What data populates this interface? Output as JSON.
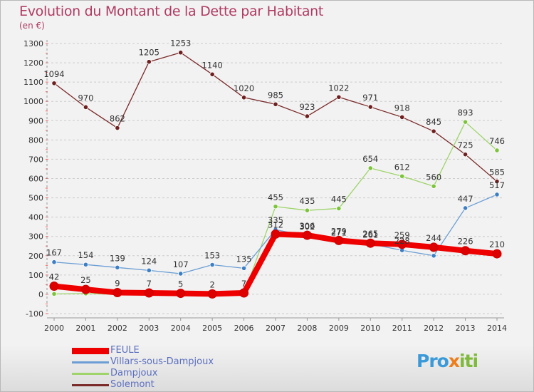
{
  "title": "Evolution du Montant de la Dette par Habitant",
  "unit": "(en €)",
  "logo": {
    "p1": "Pro",
    "x": "x",
    "p2": "iti"
  },
  "colors": {
    "title": "#b03a62",
    "grid": "#cccccc",
    "text": "#333333",
    "legend_text": "#5b6fc0"
  },
  "chart_data": {
    "type": "line",
    "title": "Evolution du Montant de la Dette par Habitant",
    "ylabel": "(en €)",
    "xlabel": "",
    "x": [
      "2000",
      "2001",
      "2002",
      "2003",
      "2004",
      "2005",
      "2006",
      "2007",
      "2008",
      "2009",
      "2010",
      "2011",
      "2012",
      "2013",
      "2014"
    ],
    "ylim": [
      -100,
      1300
    ],
    "yticks": [
      -100,
      0,
      100,
      200,
      300,
      400,
      500,
      600,
      700,
      800,
      900,
      1000,
      1100,
      1200,
      1300
    ],
    "grid": "horizontal",
    "legend_position": "bottom-left",
    "series": [
      {
        "name": "Solemont",
        "color": "#7b2a2a",
        "marker": "#6e1f1f",
        "width": 1.3,
        "values": [
          1094,
          970,
          862,
          1205,
          1253,
          1140,
          1020,
          985,
          923,
          1022,
          971,
          918,
          845,
          725,
          585
        ],
        "labels": [
          "1094",
          "970",
          "862",
          "1205",
          "1253",
          "1140",
          "1020",
          "985",
          "923",
          "1022",
          "971",
          "918",
          "845",
          "725",
          "585"
        ]
      },
      {
        "name": "Dampjoux",
        "color": "#9ed46a",
        "marker": "#7cc43a",
        "width": 1.3,
        "values": [
          2,
          4,
          0,
          4,
          3,
          2,
          0,
          455,
          435,
          445,
          654,
          612,
          560,
          893,
          746
        ],
        "labels": [
          "",
          "",
          "",
          "",
          "",
          "",
          "",
          "455",
          "435",
          "445",
          "654",
          "612",
          "560",
          "893",
          "746"
        ]
      },
      {
        "name": "Villars-sous-Dampjoux",
        "color": "#6b9ed4",
        "marker": "#3d7fc4",
        "width": 1.3,
        "values": [
          167,
          154,
          139,
          124,
          107,
          153,
          135,
          335,
          302,
          271,
          261,
          228,
          200,
          447,
          517
        ],
        "labels": [
          "167",
          "154",
          "139",
          "124",
          "107",
          "153",
          "135",
          "335",
          "302",
          "271",
          "261",
          "228",
          "",
          "447",
          "517"
        ]
      },
      {
        "name": "FEULE",
        "color": "#ee0000",
        "marker": "#dd0000",
        "width": 8,
        "values": [
          42,
          25,
          9,
          7,
          5,
          2,
          7,
          312,
          306,
          279,
          265,
          259,
          244,
          226,
          210
        ],
        "labels": [
          "42",
          "25",
          "9",
          "7",
          "5",
          "2",
          "7",
          "312",
          "306",
          "279",
          "265",
          "259",
          "244",
          "226",
          "210"
        ]
      }
    ],
    "legend": [
      "FEULE",
      "Villars-sous-Dampjoux",
      "Dampjoux",
      "Solemont"
    ]
  }
}
